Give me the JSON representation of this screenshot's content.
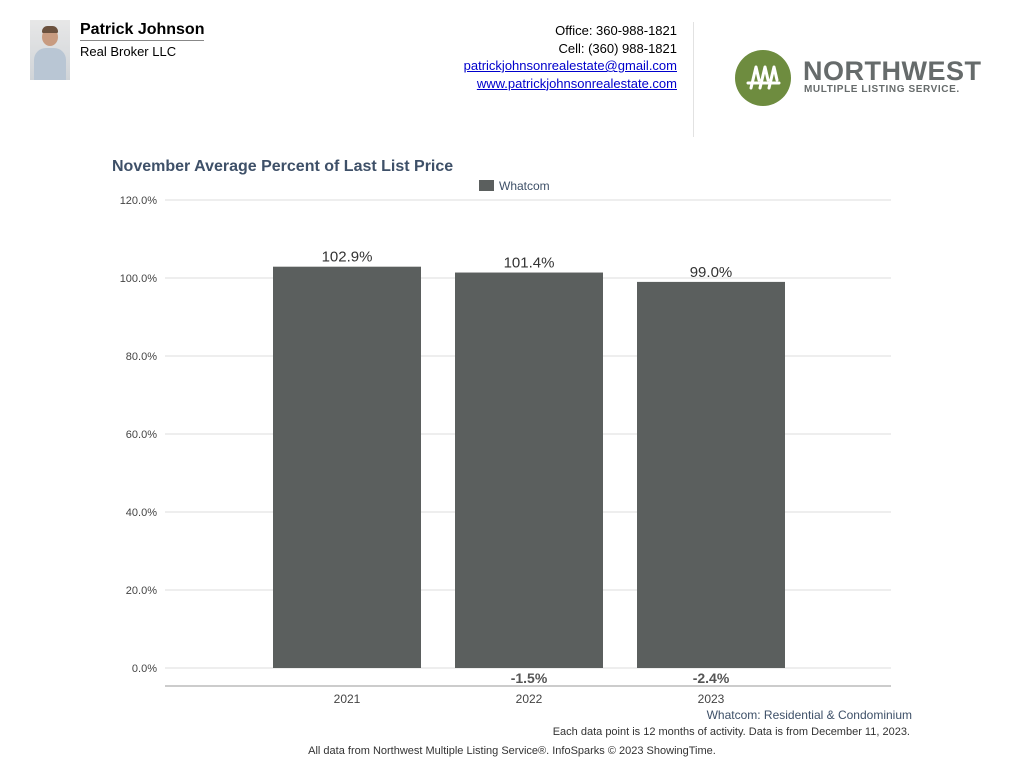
{
  "agent": {
    "name": "Patrick Johnson",
    "company": "Real Broker LLC",
    "office": "Office: 360-988-1821",
    "cell": "Cell: (360) 988-1821",
    "email": "patrickjohnsonrealestate@gmail.com",
    "website": "www.patrickjohnsonrealestate.com"
  },
  "logo": {
    "word": "NORTHWEST",
    "sub": "MULTIPLE LISTING SERVICE."
  },
  "chart_data": {
    "type": "bar",
    "title": "November Average Percent of Last List Price",
    "legend": "Whatcom",
    "legend_position": "top-center",
    "categories": [
      "2021",
      "2022",
      "2023"
    ],
    "values": [
      102.9,
      101.4,
      99.0
    ],
    "value_labels": [
      "102.9%",
      "101.4%",
      "99.0%"
    ],
    "changes": [
      "",
      "-1.5%",
      "-2.4%"
    ],
    "ylim": [
      0,
      120
    ],
    "yticks": [
      0,
      20,
      40,
      60,
      80,
      100,
      120
    ],
    "ytick_labels": [
      "0.0%",
      "20.0%",
      "40.0%",
      "60.0%",
      "80.0%",
      "100.0%",
      "120.0%"
    ],
    "grid": true,
    "colors": {
      "bar": "#5b5f5e",
      "grid": "#dddddd",
      "axis": "#999999"
    }
  },
  "footer": {
    "series": "Whatcom: Residential & Condominium",
    "note": "Each data point is 12 months of activity. Data is from December 11, 2023.",
    "source": "All data from Northwest Multiple Listing Service®. InfoSparks © 2023 ShowingTime."
  }
}
